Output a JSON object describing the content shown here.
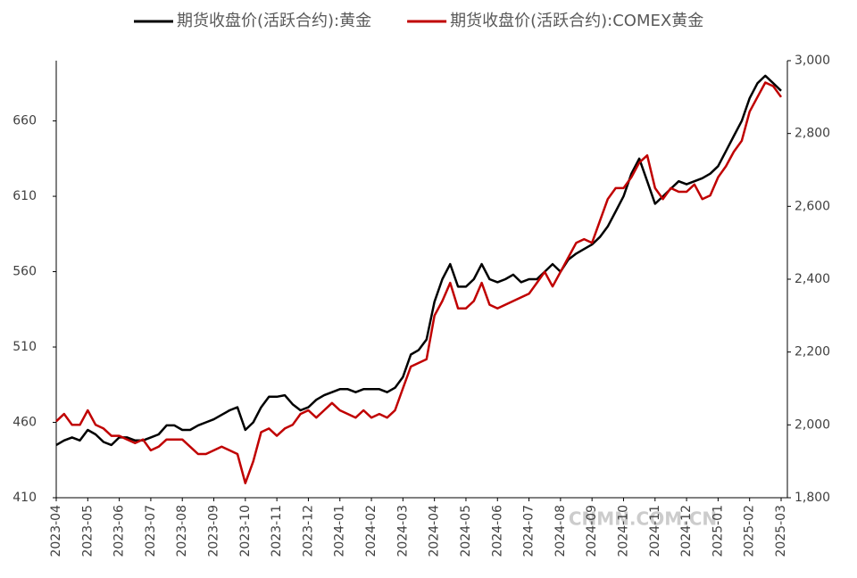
{
  "chart_data": {
    "type": "line",
    "categories": [
      "2023-04",
      null,
      null,
      null,
      "2023-05",
      null,
      null,
      null,
      "2023-06",
      null,
      null,
      null,
      "2023-07",
      null,
      null,
      null,
      "2023-08",
      null,
      null,
      null,
      "2023-09",
      null,
      null,
      null,
      "2023-10",
      null,
      null,
      null,
      "2023-11",
      null,
      null,
      null,
      "2023-12",
      null,
      null,
      null,
      "2024-01",
      null,
      null,
      null,
      "2024-02",
      null,
      null,
      null,
      "2024-03",
      null,
      null,
      null,
      "2024-04",
      null,
      null,
      null,
      "2024-05",
      null,
      null,
      null,
      "2024-06",
      null,
      null,
      null,
      "2024-07",
      null,
      null,
      null,
      "2024-08",
      null,
      null,
      null,
      "2024-09",
      null,
      null,
      null,
      "2024-10",
      null,
      null,
      null,
      "2024-11",
      null,
      null,
      null,
      "2024-12",
      null,
      null,
      null,
      "2025-01",
      null,
      null,
      null,
      "2025-02",
      null,
      null,
      null,
      "2025-03"
    ],
    "series": [
      {
        "name": "期货收盘价(活跃合约):黄金",
        "color": "#000000",
        "axis": "y",
        "values": [
          445,
          448,
          450,
          448,
          455,
          452,
          447,
          445,
          450,
          450,
          448,
          448,
          450,
          452,
          458,
          458,
          455,
          455,
          458,
          460,
          462,
          465,
          468,
          470,
          455,
          460,
          470,
          477,
          477,
          478,
          472,
          468,
          470,
          475,
          478,
          480,
          482,
          482,
          480,
          482,
          482,
          482,
          480,
          483,
          490,
          505,
          508,
          515,
          540,
          555,
          565,
          550,
          550,
          555,
          565,
          555,
          553,
          555,
          558,
          553,
          555,
          555,
          560,
          565,
          560,
          568,
          572,
          575,
          578,
          583,
          590,
          600,
          610,
          625,
          635,
          620,
          605,
          610,
          615,
          620,
          618,
          620,
          622,
          625,
          630,
          640,
          650,
          660,
          675,
          685,
          690,
          685,
          680
        ]
      },
      {
        "name": "期货收盘价(活跃合约):COMEX黄金",
        "color": "#c00000",
        "axis": "y2",
        "values": [
          2010,
          2030,
          2000,
          2000,
          2040,
          2000,
          1990,
          1970,
          1970,
          1960,
          1950,
          1960,
          1930,
          1940,
          1960,
          1960,
          1960,
          1940,
          1920,
          1920,
          1930,
          1940,
          1930,
          1920,
          1840,
          1900,
          1980,
          1990,
          1970,
          1990,
          2000,
          2030,
          2040,
          2020,
          2040,
          2060,
          2040,
          2030,
          2020,
          2040,
          2020,
          2030,
          2020,
          2040,
          2100,
          2160,
          2170,
          2180,
          2300,
          2340,
          2390,
          2320,
          2320,
          2340,
          2390,
          2330,
          2320,
          2330,
          2340,
          2350,
          2360,
          2390,
          2420,
          2380,
          2420,
          2460,
          2500,
          2510,
          2500,
          2560,
          2620,
          2650,
          2650,
          2680,
          2720,
          2740,
          2650,
          2620,
          2650,
          2640,
          2640,
          2660,
          2620,
          2630,
          2680,
          2710,
          2750,
          2780,
          2860,
          2900,
          2940,
          2930,
          2900
        ]
      }
    ],
    "ylim": [
      410,
      700
    ],
    "yticks": [
      410,
      460,
      510,
      560,
      610,
      660
    ],
    "y2lim": [
      1800,
      3000
    ],
    "y2ticks": [
      {
        "value": 1800,
        "label": "1,800"
      },
      {
        "value": 2000,
        "label": "2,000"
      },
      {
        "value": 2200,
        "label": "2,200"
      },
      {
        "value": 2400,
        "label": "2,400"
      },
      {
        "value": 2600,
        "label": "2,600"
      },
      {
        "value": 2800,
        "label": "2,800"
      },
      {
        "value": 3000,
        "label": "3,000"
      }
    ],
    "legend": "top",
    "watermark": "CNMN.COM.CN"
  }
}
